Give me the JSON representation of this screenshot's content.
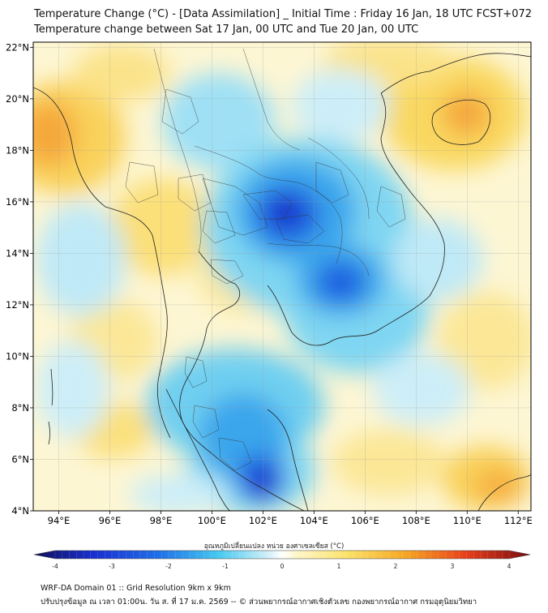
{
  "header": {
    "title_line1": "Temperature Change (°C) - [Data Assimilation] _ Initial Time : Friday 16 Jan, 18 UTC FCST+072",
    "title_line2": "Temperature change between Sat 17 Jan, 00 UTC and Tue 20 Jan, 00 UTC"
  },
  "map": {
    "lat_ticks": [
      "22°N",
      "20°N",
      "18°N",
      "16°N",
      "14°N",
      "12°N",
      "10°N",
      "8°N",
      "6°N",
      "4°N"
    ],
    "lat_values": [
      22,
      20,
      18,
      16,
      14,
      12,
      10,
      8,
      6,
      4
    ],
    "lon_ticks": [
      "94°E",
      "96°E",
      "98°E",
      "100°E",
      "102°E",
      "104°E",
      "106°E",
      "108°E",
      "110°E",
      "112°E"
    ],
    "lon_values": [
      94,
      96,
      98,
      100,
      102,
      104,
      106,
      108,
      110,
      112
    ],
    "lon_range": [
      93,
      112.5
    ],
    "lat_range": [
      4,
      22.2
    ],
    "anomalies": [
      {
        "name": "northeast-thailand-cooling",
        "lon": 102.8,
        "lat": 15.4,
        "value": -3.2
      },
      {
        "name": "cambodia-cooling",
        "lon": 104.9,
        "lat": 12.8,
        "value": -2.6
      },
      {
        "name": "malaysia-cooling",
        "lon": 101.9,
        "lat": 4.9,
        "value": -3.4
      },
      {
        "name": "myanmar-warming",
        "lon": 93.8,
        "lat": 18.9,
        "value": 1.4
      },
      {
        "name": "hainan-warming",
        "lon": 110.2,
        "lat": 19.5,
        "value": 1.6
      },
      {
        "name": "south-china-sea-warming",
        "lon": 110.5,
        "lat": 4.7,
        "value": 1.3
      }
    ]
  },
  "colorbar": {
    "label": "อุณหภูมิเปลี่ยนแปลง หน่วย องศาเซลเซียส (°C)",
    "ticks": [
      "-4",
      "-3",
      "-2",
      "-1",
      "0",
      "1",
      "2",
      "3",
      "4"
    ],
    "tick_values": [
      -4,
      -3,
      -2,
      -1,
      0,
      1,
      2,
      3,
      4
    ],
    "range": [
      -4,
      4
    ]
  },
  "footer": {
    "line1": "WRF-DA Domain 01 :: Grid Resolution 9km x 9km",
    "line2": "ปรับปรุงข้อมูล ณ เวลา 01:00น. วัน ส. ที่ 17 ม.ค. 2569 -- © ส่วนพยากรณ์อากาศเชิงตัวเลข กองพยากรณ์อากาศ กรมอุตุนิยมวิทยา"
  }
}
